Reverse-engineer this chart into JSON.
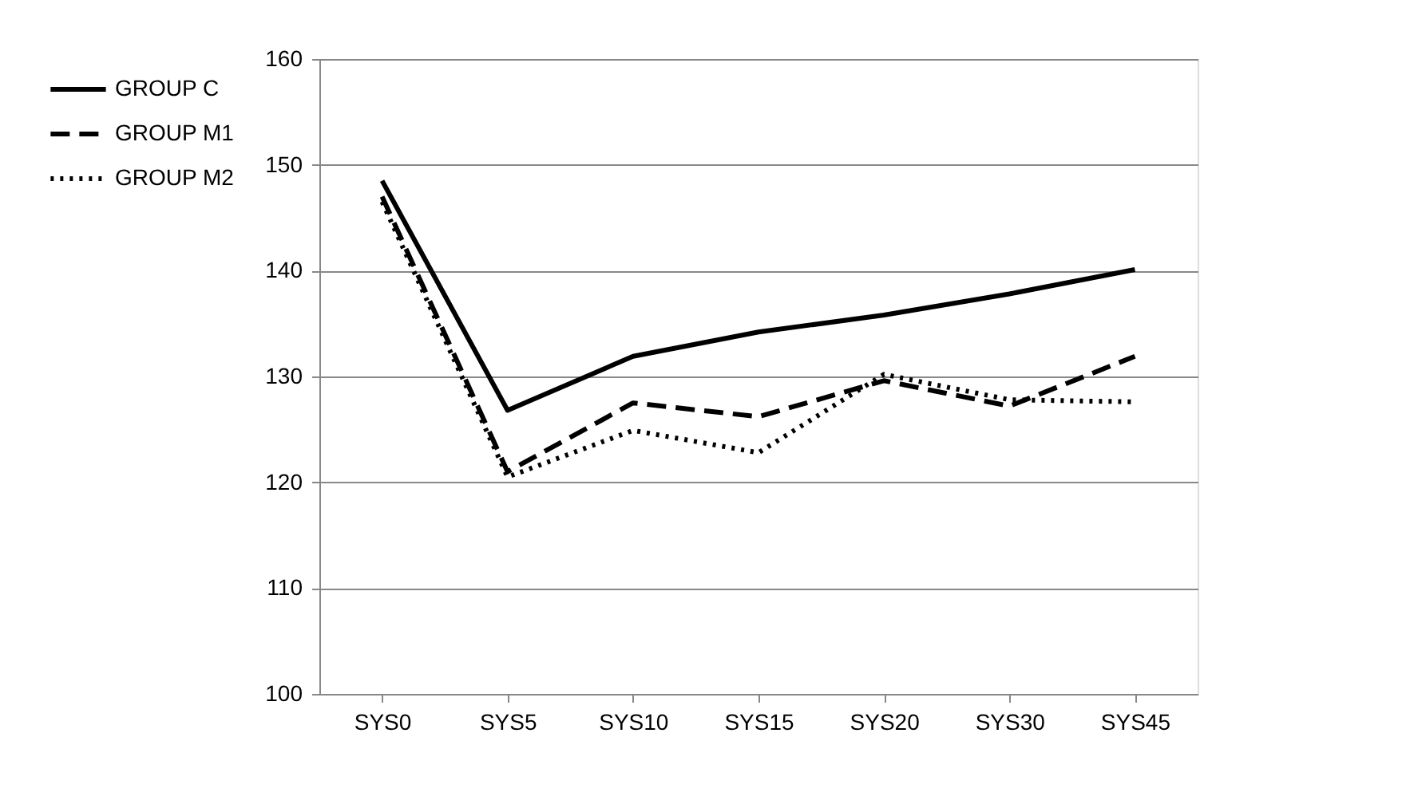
{
  "chart_data": {
    "type": "line",
    "categories": [
      "SYS0",
      "SYS5",
      "SYS10",
      "SYS15",
      "SYS20",
      "SYS30",
      "SYS45"
    ],
    "series": [
      {
        "name": "GROUP C",
        "color": "#000000",
        "line_style": "solid",
        "values": [
          148.5,
          126.8,
          131.9,
          134.2,
          135.8,
          137.8,
          140.1
        ]
      },
      {
        "name": "GROUP M1",
        "color": "#000000",
        "line_style": "dashed",
        "values": [
          147.0,
          121.0,
          127.5,
          126.2,
          129.6,
          127.2,
          131.9
        ]
      },
      {
        "name": "GROUP M2",
        "color": "#000000",
        "line_style": "dotted",
        "values": [
          146.5,
          120.5,
          124.9,
          122.8,
          130.2,
          127.8,
          127.6
        ]
      }
    ],
    "ylim": [
      100,
      160
    ],
    "yticks": [
      100,
      110,
      120,
      130,
      140,
      150,
      160
    ],
    "grid": "y",
    "legend": "left",
    "marker": "none"
  }
}
